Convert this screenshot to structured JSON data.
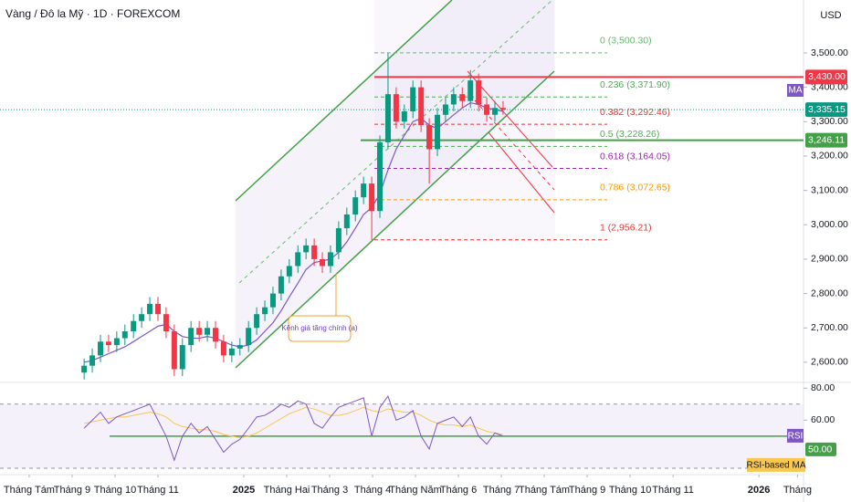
{
  "chart_data": {
    "type": "candlestick",
    "title": "Vàng / Đô la Mỹ · 1D · FOREXCOM",
    "currency": "USD",
    "up_color": "#089981",
    "down_color": "#f23645",
    "x": [
      1.28,
      1.47,
      1.66,
      1.85,
      2.04,
      2.23,
      2.43,
      2.62,
      2.81,
      3.0,
      3.19,
      3.38,
      3.57,
      3.77,
      3.96,
      4.15,
      4.34,
      4.53,
      4.72,
      4.91,
      5.11,
      5.3,
      5.49,
      5.68,
      5.87,
      6.06,
      6.26,
      6.45,
      6.64,
      6.83,
      7.02,
      7.21,
      7.4,
      7.6,
      7.79,
      7.98,
      8.17,
      8.36,
      8.55,
      8.74,
      8.94,
      9.13,
      9.32,
      9.51,
      9.7,
      9.89,
      10.09,
      10.28,
      10.47,
      10.66,
      10.85,
      11.04
    ],
    "open": [
      2570,
      2590,
      2620,
      2660,
      2650,
      2670,
      2690,
      2720,
      2740,
      2770,
      2740,
      2690,
      2580,
      2650,
      2700,
      2680,
      2700,
      2660,
      2620,
      2640,
      2650,
      2700,
      2740,
      2760,
      2800,
      2850,
      2880,
      2920,
      2940,
      2900,
      2880,
      2920,
      2990,
      3030,
      3080,
      3120,
      3040,
      3240,
      3380,
      3300,
      3330,
      3400,
      3290,
      3220,
      3320,
      3350,
      3380,
      3360,
      3420,
      3350,
      3320,
      3340
    ],
    "high": [
      2610,
      2640,
      2680,
      2680,
      2690,
      2710,
      2740,
      2760,
      2790,
      2790,
      2760,
      2710,
      2670,
      2720,
      2720,
      2720,
      2720,
      2680,
      2660,
      2670,
      2720,
      2760,
      2780,
      2820,
      2870,
      2900,
      2940,
      2960,
      2960,
      2920,
      2940,
      3010,
      3050,
      3100,
      3140,
      3140,
      3260,
      3500,
      3400,
      3350,
      3420,
      3420,
      3310,
      3340,
      3370,
      3400,
      3400,
      3450,
      3440,
      3370,
      3360,
      3360
    ],
    "low": [
      2550,
      2570,
      2600,
      2630,
      2630,
      2650,
      2670,
      2700,
      2720,
      2720,
      2670,
      2560,
      2560,
      2630,
      2660,
      2660,
      2640,
      2600,
      2600,
      2620,
      2630,
      2680,
      2720,
      2740,
      2780,
      2830,
      2860,
      2900,
      2880,
      2860,
      2860,
      2900,
      2970,
      3010,
      3060,
      2956,
      3020,
      3220,
      3280,
      3280,
      3310,
      3270,
      3120,
      3200,
      3300,
      3330,
      3340,
      3340,
      3330,
      3300,
      3300,
      3320
    ],
    "close": [
      2590,
      2620,
      2660,
      2650,
      2670,
      2690,
      2720,
      2740,
      2770,
      2740,
      2690,
      2580,
      2650,
      2700,
      2680,
      2700,
      2660,
      2620,
      2640,
      2650,
      2700,
      2740,
      2760,
      2800,
      2850,
      2880,
      2920,
      2940,
      2900,
      2880,
      2920,
      2990,
      3030,
      3080,
      3120,
      3040,
      3240,
      3380,
      3300,
      3330,
      3400,
      3290,
      3220,
      3320,
      3350,
      3380,
      3360,
      3420,
      3350,
      3320,
      3340,
      3335
    ],
    "ma": {
      "name": "MA",
      "color": "#7e57c2",
      "values": [
        2600,
        2605,
        2615,
        2625,
        2635,
        2645,
        2660,
        2675,
        2690,
        2705,
        2710,
        2690,
        2675,
        2670,
        2670,
        2675,
        2670,
        2660,
        2650,
        2645,
        2650,
        2665,
        2690,
        2715,
        2750,
        2790,
        2830,
        2870,
        2890,
        2895,
        2900,
        2920,
        2950,
        2990,
        3030,
        3050,
        3090,
        3160,
        3220,
        3260,
        3300,
        3310,
        3290,
        3280,
        3300,
        3320,
        3340,
        3355,
        3350,
        3340,
        3335,
        3330
      ]
    },
    "xlim": [
      -0.68,
      18.04
    ],
    "xticks": [
      {
        "value": 0,
        "label": "Tháng Tám"
      },
      {
        "value": 1,
        "label": "Tháng 9"
      },
      {
        "value": 2,
        "label": "Tháng 10"
      },
      {
        "value": 3,
        "label": "Tháng 11"
      },
      {
        "value": 5,
        "label": "2025"
      },
      {
        "value": 6,
        "label": "Tháng Hai"
      },
      {
        "value": 7,
        "label": "Tháng 3"
      },
      {
        "value": 8,
        "label": "Tháng 4"
      },
      {
        "value": 9,
        "label": "Tháng Năm"
      },
      {
        "value": 10,
        "label": "Tháng 6"
      },
      {
        "value": 11,
        "label": "Tháng 7"
      },
      {
        "value": 12,
        "label": "Tháng Tám"
      },
      {
        "value": 13,
        "label": "Tháng 9"
      },
      {
        "value": 14,
        "label": "Tháng 10"
      },
      {
        "value": 15,
        "label": "Tháng 11"
      },
      {
        "value": 17,
        "label": "2026"
      },
      {
        "value": 17.9,
        "label": "Tháng"
      }
    ],
    "ylim": [
      2544,
      3654
    ],
    "yticks": [
      {
        "value": 2600,
        "label": "2,600.00"
      },
      {
        "value": 2700,
        "label": "2,700.00"
      },
      {
        "value": 2800,
        "label": "2,800.00"
      },
      {
        "value": 2900,
        "label": "2,900.00"
      },
      {
        "value": 3000,
        "label": "3,000.00"
      },
      {
        "value": 3100,
        "label": "3,100.00"
      },
      {
        "value": 3200,
        "label": "3,200.00"
      },
      {
        "value": 3300,
        "label": "3,300.00"
      },
      {
        "value": 3400,
        "label": "3,400.00"
      },
      {
        "value": 3500,
        "label": "3,500.00"
      }
    ],
    "price_labels": [
      {
        "value": 3430,
        "label": "3,430.00",
        "color": "#f23645"
      },
      {
        "value": 3335.15,
        "label": "3,335.15",
        "color": "#089981"
      },
      {
        "value": 3246.11,
        "label": "3,246.11",
        "color": "#43a047"
      }
    ],
    "fib": [
      {
        "label": "0 (3,500.30)",
        "value": 3500.3,
        "color": "#66bb6a"
      },
      {
        "label": "0.236 (3,371.90)",
        "value": 3371.9,
        "color": "#4caf50"
      },
      {
        "label": "0.382 (3,292.46)",
        "value": 3292.46,
        "color": "#e53935"
      },
      {
        "label": "0.5 (3,228.26)",
        "value": 3228.26,
        "color": "#4caf50"
      },
      {
        "label": "0.618 (3,164.05)",
        "value": 3164.05,
        "color": "#9c27b0"
      },
      {
        "label": "0.786 (3,072.65)",
        "value": 3072.65,
        "color": "#ff9800"
      },
      {
        "label": "1 (2,956.21)",
        "value": 2956.21,
        "color": "#e53935"
      }
    ],
    "annotation": "Kênh giá tăng chính (a)",
    "rsi": {
      "name": "RSI",
      "color": "#7e57c2",
      "values": [
        55,
        60,
        65,
        58,
        62,
        64,
        66,
        68,
        70,
        60,
        50,
        35,
        50,
        58,
        52,
        56,
        48,
        40,
        45,
        48,
        55,
        62,
        63,
        66,
        70,
        68,
        72,
        70,
        58,
        55,
        62,
        68,
        70,
        72,
        74,
        50,
        68,
        75,
        60,
        62,
        66,
        50,
        42,
        58,
        60,
        62,
        56,
        62,
        50,
        45,
        52,
        50
      ],
      "ma_name": "RSI-based MA",
      "ma_color": "#f9c74f",
      "ma_values": [
        58,
        59,
        60,
        61,
        62,
        62,
        63,
        64,
        65,
        64,
        62,
        58,
        56,
        55,
        54,
        54,
        53,
        51,
        50,
        49,
        50,
        52,
        55,
        58,
        61,
        64,
        66,
        68,
        67,
        65,
        63,
        63,
        64,
        66,
        68,
        66,
        65,
        67,
        66,
        65,
        65,
        63,
        60,
        58,
        57,
        57,
        56,
        57,
        55,
        53,
        52,
        51
      ],
      "ylim": [
        26,
        83
      ],
      "yticks": [
        {
          "value": 80,
          "label": "80.00"
        },
        {
          "value": 60,
          "label": "60.00"
        }
      ],
      "bands": [
        70,
        30
      ],
      "level": {
        "value": 50,
        "label": "50.00",
        "color": "#43a047"
      }
    }
  }
}
